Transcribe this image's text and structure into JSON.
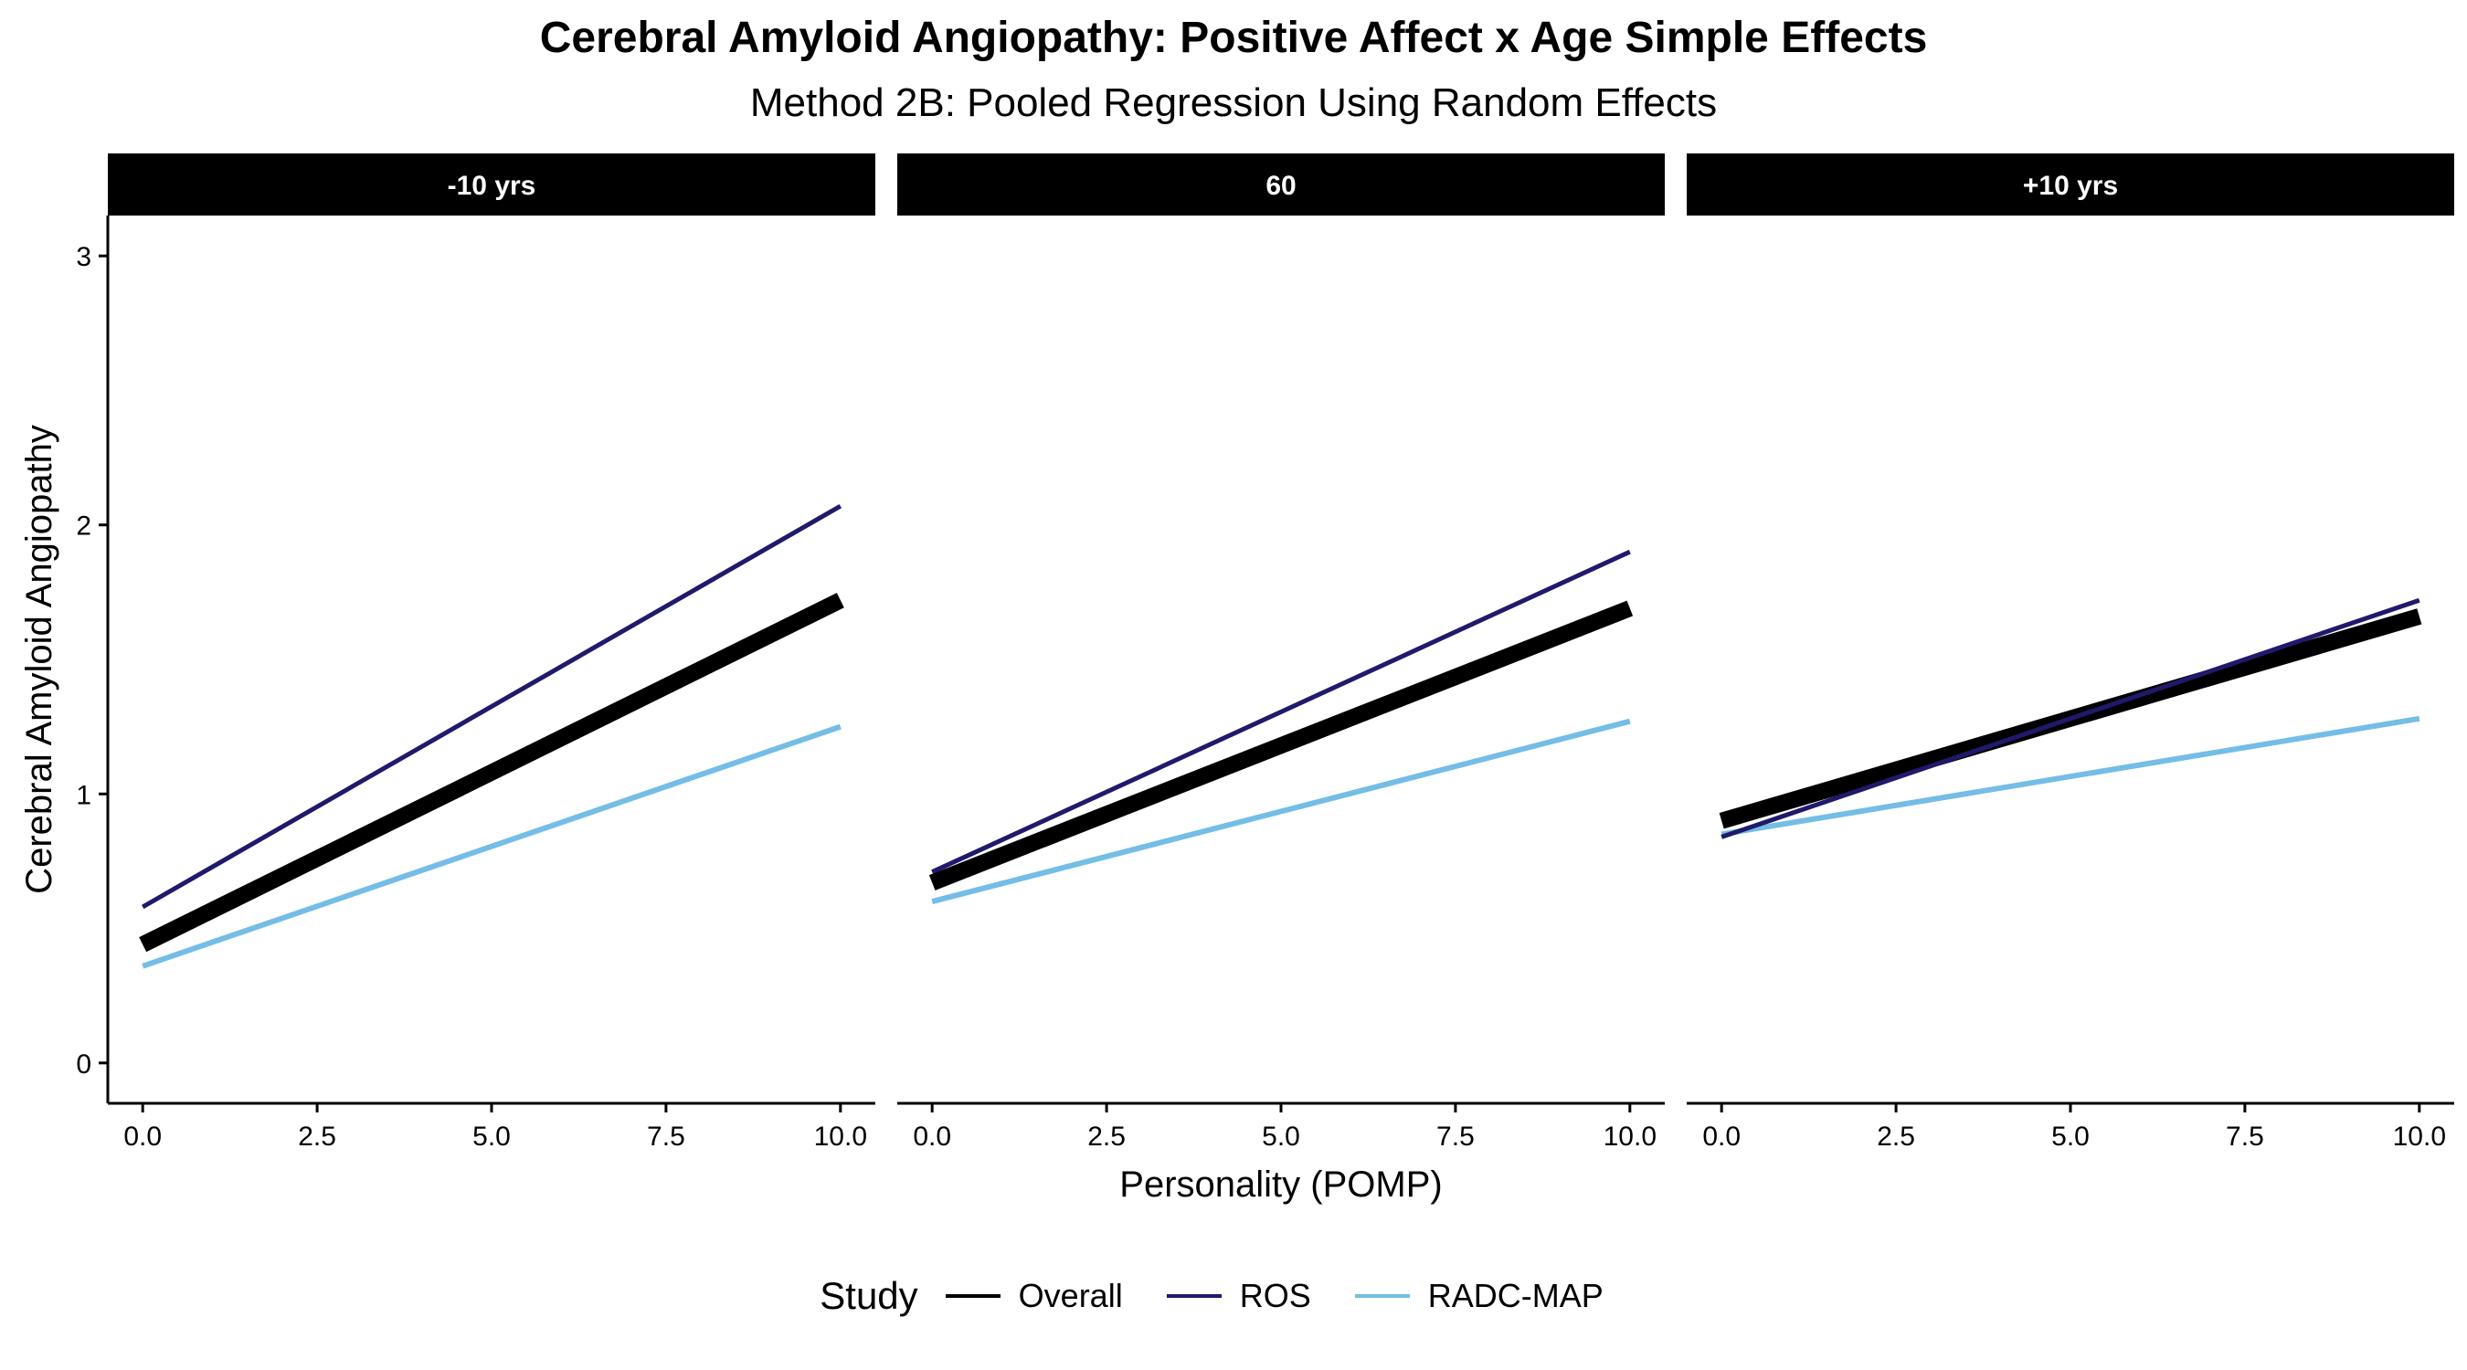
{
  "chart_data": {
    "type": "line",
    "title": "Cerebral Amyloid Angiopathy: Positive Affect x Age Simple Effects",
    "subtitle": "Method 2B: Pooled Regression Using Random Effects",
    "xlabel": "Personality (POMP)",
    "ylabel": "Cerebral Amyloid Angiopathy",
    "xlim": [
      -0.5,
      10.5
    ],
    "ylim": [
      -0.15,
      3.15
    ],
    "xticks": [
      0,
      2.5,
      5,
      7.5,
      10
    ],
    "xtick_labels": [
      "0.0",
      "2.5",
      "5.0",
      "7.5",
      "10.0"
    ],
    "yticks": [
      0,
      1,
      2,
      3
    ],
    "ytick_labels": [
      "0",
      "1",
      "2",
      "3"
    ],
    "grid": false,
    "legend": {
      "title": "Study",
      "placement": "bottom",
      "entries": [
        "Overall",
        "ROS",
        "RADC-MAP"
      ]
    },
    "series_colors": {
      "Overall": "#000000",
      "ROS": "#1f1a6b",
      "RADC-MAP": "#74bde6"
    },
    "panels": [
      {
        "label": "-10 yrs",
        "series": [
          {
            "name": "Overall",
            "x": [
              0,
              10
            ],
            "y": [
              0.44,
              1.72
            ]
          },
          {
            "name": "ROS",
            "x": [
              0,
              10
            ],
            "y": [
              0.58,
              2.07
            ]
          },
          {
            "name": "RADC-MAP",
            "x": [
              0,
              10
            ],
            "y": [
              0.36,
              1.25
            ]
          }
        ]
      },
      {
        "label": "60",
        "series": [
          {
            "name": "Overall",
            "x": [
              0,
              10
            ],
            "y": [
              0.67,
              1.69
            ]
          },
          {
            "name": "ROS",
            "x": [
              0,
              10
            ],
            "y": [
              0.71,
              1.9
            ]
          },
          {
            "name": "RADC-MAP",
            "x": [
              0,
              10
            ],
            "y": [
              0.6,
              1.27
            ]
          }
        ]
      },
      {
        "label": "+10 yrs",
        "series": [
          {
            "name": "Overall",
            "x": [
              0,
              10
            ],
            "y": [
              0.9,
              1.66
            ]
          },
          {
            "name": "ROS",
            "x": [
              0,
              10
            ],
            "y": [
              0.84,
              1.72
            ]
          },
          {
            "name": "RADC-MAP",
            "x": [
              0,
              10
            ],
            "y": [
              0.85,
              1.28
            ]
          }
        ]
      }
    ]
  }
}
